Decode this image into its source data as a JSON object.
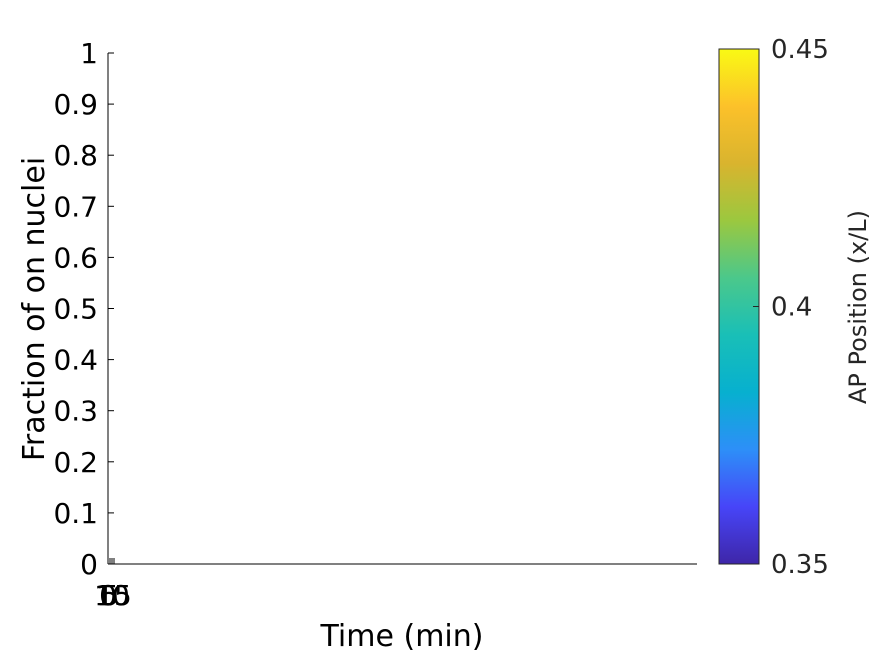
{
  "chart_data": {
    "type": "line",
    "title": "",
    "xlabel": "Time (min)",
    "ylabel": "Fraction of on nuclei",
    "ylim": [
      0,
      1
    ],
    "y_ticks": [
      "0",
      "0.1",
      "0.2",
      "0.3",
      "0.4",
      "0.5",
      "0.6",
      "0.7",
      "0.8",
      "0.9",
      "1"
    ],
    "x_tick_labels_overlapping": [
      "0",
      "5",
      "10",
      "15"
    ],
    "series": [],
    "grid": false,
    "colorbar": {
      "label": "AP Position (x/L)",
      "range": [
        0.35,
        0.45
      ],
      "ticks": [
        "0.35",
        "0.4",
        "0.45"
      ],
      "colormap": [
        "#3e26a8",
        "#4745f8",
        "#2d8ff8",
        "#07b0cf",
        "#19bfb7",
        "#4bc88b",
        "#9bc83f",
        "#d9b42e",
        "#fcc12a",
        "#f9fa14"
      ]
    }
  }
}
